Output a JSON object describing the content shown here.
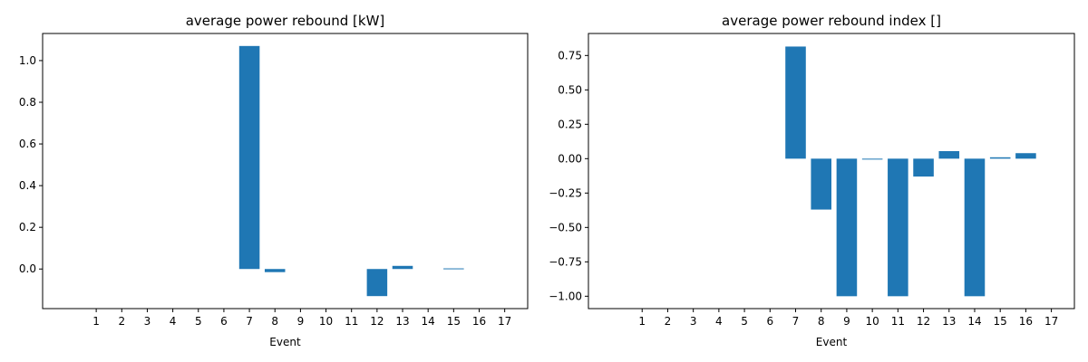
{
  "chart_data": [
    {
      "type": "bar",
      "title": "average power rebound [kW]",
      "xlabel": "Event",
      "ylabel": "",
      "categories": [
        "1",
        "2",
        "3",
        "4",
        "5",
        "6",
        "7",
        "8",
        "9",
        "10",
        "11",
        "12",
        "13",
        "14",
        "15",
        "16",
        "17"
      ],
      "values": [
        0,
        0,
        0,
        0,
        0,
        0,
        1.07,
        -0.015,
        0,
        0,
        0,
        -0.13,
        0.015,
        0,
        0.003,
        0,
        0
      ],
      "ylim": [
        -0.19,
        1.13
      ],
      "yticks": [
        0.0,
        0.2,
        0.4,
        0.6,
        0.8,
        1.0
      ],
      "ytick_labels": [
        "0.0",
        "0.2",
        "0.4",
        "0.6",
        "0.8",
        "1.0"
      ],
      "bar_color": "#1f77b4",
      "grid": false
    },
    {
      "type": "bar",
      "title": "average power rebound index []",
      "xlabel": "Event",
      "ylabel": "",
      "categories": [
        "1",
        "2",
        "3",
        "4",
        "5",
        "6",
        "7",
        "8",
        "9",
        "10",
        "11",
        "12",
        "13",
        "14",
        "15",
        "16",
        "17"
      ],
      "values": [
        0,
        0,
        0,
        0,
        0,
        0,
        0.815,
        -0.37,
        -1.0,
        -0.005,
        -1.0,
        -0.13,
        0.055,
        -1.0,
        0.01,
        0.04,
        0
      ],
      "ylim": [
        -1.09,
        0.91
      ],
      "yticks": [
        -1.0,
        -0.75,
        -0.5,
        -0.25,
        0.0,
        0.25,
        0.5,
        0.75
      ],
      "ytick_labels": [
        "−1.00",
        "−0.75",
        "−0.50",
        "−0.25",
        "0.00",
        "0.25",
        "0.50",
        "0.75"
      ],
      "bar_color": "#1f77b4",
      "grid": false
    }
  ]
}
